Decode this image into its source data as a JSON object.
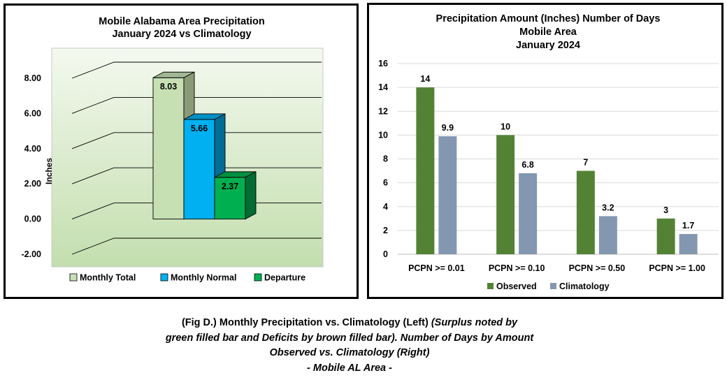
{
  "chart_data": [
    {
      "type": "bar",
      "style": "3d",
      "title": [
        "Mobile Alabama Area Precipitation",
        "January 2024 vs Climatology"
      ],
      "ylabel": "Inches",
      "ylim": [
        -2,
        8
      ],
      "yticks": [
        "8.00",
        "6.00",
        "4.00",
        "2.00",
        "0.00",
        "-2.00"
      ],
      "series": [
        {
          "name": "Monthly Total",
          "value": 8.03,
          "label": "8.03",
          "color": "#c6e0b4"
        },
        {
          "name": "Monthly Normal",
          "value": 5.66,
          "label": "5.66",
          "color": "#00b0f0"
        },
        {
          "name": "Departure",
          "value": 2.37,
          "label": "2.37",
          "color": "#00b050"
        }
      ],
      "legend_position": "bottom",
      "background": "green-gradient"
    },
    {
      "type": "bar",
      "title": [
        "Precipitation Amount (Inches) Number of Days",
        "Mobile Area",
        "January 2024"
      ],
      "categories": [
        "PCPN >= 0.01",
        "PCPN >= 0.10",
        "PCPN >= 0.50",
        "PCPN >= 1.00"
      ],
      "series": [
        {
          "name": "Observed",
          "values": [
            14,
            10,
            7,
            3
          ],
          "labels": [
            "14",
            "10",
            "7",
            "3"
          ],
          "color": "#548235"
        },
        {
          "name": "Climatology",
          "values": [
            9.9,
            6.8,
            3.2,
            1.7
          ],
          "labels": [
            "9.9",
            "6.8",
            "3.2",
            "1.7"
          ],
          "color": "#8497b0"
        }
      ],
      "ylim": [
        0,
        16
      ],
      "yticks": [
        "0",
        "2",
        "4",
        "6",
        "8",
        "10",
        "12",
        "14",
        "16"
      ],
      "grid": true,
      "legend_position": "bottom"
    }
  ],
  "caption": {
    "line1_normal": "(Fig D.) Monthly Precipitation vs. Climatology (Left) ",
    "line1_italic": "(Surplus noted by",
    "line2": "green filled bar and Deficits by brown filled bar). Number of Days by Amount",
    "line3": "Observed vs. Climatology (Right)",
    "line4": "- Mobile AL Area -"
  }
}
